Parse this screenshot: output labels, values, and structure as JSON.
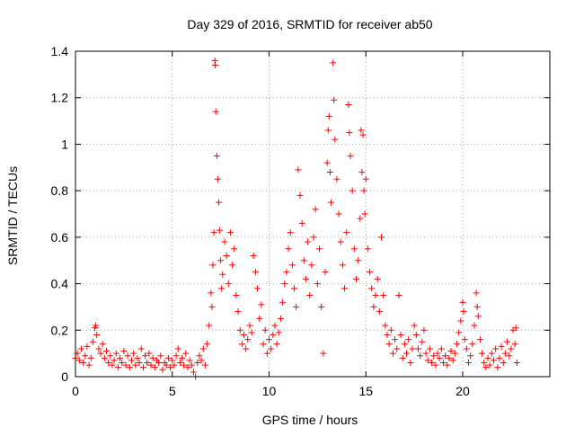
{
  "chart_data": {
    "type": "scatter",
    "title": "Day 329 of 2016, SRMTID for receiver ab50",
    "xlabel": "GPS time / hours",
    "ylabel": "SRMTID / TECUs",
    "xlim": [
      0,
      24.5
    ],
    "ylim": [
      0,
      1.4
    ],
    "x_ticks": [
      0,
      5,
      10,
      15,
      20
    ],
    "x_tick_labels": [
      "0",
      "5",
      "10",
      "15",
      "20"
    ],
    "y_ticks": [
      0,
      0.2,
      0.4,
      0.6,
      0.8,
      1.0,
      1.2,
      1.4
    ],
    "y_tick_labels": [
      "0",
      "0.2",
      "0.4",
      "0.6",
      "0.8",
      "1",
      "1.2",
      "1.4"
    ],
    "grid": true,
    "marker": "+",
    "series": [
      {
        "name": "SRMTID",
        "color": "#ff0000",
        "points": [
          [
            0.0,
            0.08
          ],
          [
            0.1,
            0.1
          ],
          [
            0.2,
            0.07
          ],
          [
            0.3,
            0.12
          ],
          [
            0.4,
            0.06
          ],
          [
            0.5,
            0.09
          ],
          [
            0.6,
            0.13
          ],
          [
            0.7,
            0.05
          ],
          [
            0.8,
            0.08
          ],
          [
            0.9,
            0.15
          ],
          [
            1.0,
            0.21
          ],
          [
            1.05,
            0.22
          ],
          [
            1.1,
            0.18
          ],
          [
            1.2,
            0.12
          ],
          [
            1.3,
            0.1
          ],
          [
            1.4,
            0.14
          ],
          [
            1.5,
            0.08
          ],
          [
            1.6,
            0.11
          ],
          [
            1.7,
            0.06
          ],
          [
            1.8,
            0.09
          ],
          [
            1.9,
            0.05
          ],
          [
            2.0,
            0.07
          ],
          [
            2.1,
            0.1
          ],
          [
            2.2,
            0.04
          ],
          [
            2.3,
            0.08
          ],
          [
            2.4,
            0.06
          ],
          [
            2.5,
            0.11
          ],
          [
            2.6,
            0.05
          ],
          [
            2.7,
            0.09
          ],
          [
            2.8,
            0.04
          ],
          [
            2.9,
            0.07
          ],
          [
            3.0,
            0.1
          ],
          [
            3.1,
            0.05
          ],
          [
            3.2,
            0.08
          ],
          [
            3.3,
            0.06
          ],
          [
            3.4,
            0.12
          ],
          [
            3.5,
            0.04
          ],
          [
            3.6,
            0.09
          ],
          [
            3.7,
            0.06
          ],
          [
            3.8,
            0.1
          ],
          [
            3.9,
            0.05
          ],
          [
            4.0,
            0.08
          ],
          [
            4.1,
            0.04
          ],
          [
            4.2,
            0.07
          ],
          [
            4.3,
            0.06
          ],
          [
            4.4,
            0.09
          ],
          [
            4.5,
            0.03
          ],
          [
            4.6,
            0.06
          ],
          [
            4.7,
            0.05
          ],
          [
            4.8,
            0.08
          ],
          [
            4.9,
            0.04
          ],
          [
            5.0,
            0.07
          ],
          [
            5.1,
            0.05
          ],
          [
            5.2,
            0.09
          ],
          [
            5.3,
            0.12
          ],
          [
            5.4,
            0.06
          ],
          [
            5.5,
            0.08
          ],
          [
            5.6,
            0.05
          ],
          [
            5.7,
            0.1
          ],
          [
            5.8,
            0.04
          ],
          [
            5.9,
            0.07
          ],
          [
            6.0,
            0.05
          ],
          [
            6.1,
            0.02
          ],
          [
            6.2,
            0.0
          ],
          [
            6.3,
            0.06
          ],
          [
            6.4,
            0.09
          ],
          [
            6.5,
            0.07
          ],
          [
            6.6,
            0.12
          ],
          [
            6.7,
            0.05
          ],
          [
            6.8,
            0.14
          ],
          [
            6.9,
            0.22
          ],
          [
            7.0,
            0.36
          ],
          [
            7.05,
            0.3
          ],
          [
            7.1,
            0.48
          ],
          [
            7.15,
            0.62
          ],
          [
            7.2,
            1.36
          ],
          [
            7.22,
            1.34
          ],
          [
            7.25,
            1.14
          ],
          [
            7.3,
            0.95
          ],
          [
            7.35,
            0.85
          ],
          [
            7.4,
            0.75
          ],
          [
            7.45,
            0.63
          ],
          [
            7.5,
            0.5
          ],
          [
            7.55,
            0.38
          ],
          [
            7.6,
            0.44
          ],
          [
            7.7,
            0.58
          ],
          [
            7.8,
            0.52
          ],
          [
            7.9,
            0.4
          ],
          [
            8.0,
            0.62
          ],
          [
            8.1,
            0.48
          ],
          [
            8.2,
            0.55
          ],
          [
            8.3,
            0.35
          ],
          [
            8.4,
            0.28
          ],
          [
            8.5,
            0.2
          ],
          [
            8.6,
            0.14
          ],
          [
            8.7,
            0.18
          ],
          [
            8.8,
            0.12
          ],
          [
            8.9,
            0.16
          ],
          [
            9.0,
            0.22
          ],
          [
            9.1,
            0.19
          ],
          [
            9.2,
            0.52
          ],
          [
            9.3,
            0.45
          ],
          [
            9.4,
            0.38
          ],
          [
            9.5,
            0.25
          ],
          [
            9.6,
            0.31
          ],
          [
            9.7,
            0.14
          ],
          [
            9.8,
            0.2
          ],
          [
            9.9,
            0.1
          ],
          [
            10.0,
            0.16
          ],
          [
            10.1,
            0.12
          ],
          [
            10.2,
            0.18
          ],
          [
            10.3,
            0.22
          ],
          [
            10.4,
            0.14
          ],
          [
            10.5,
            0.19
          ],
          [
            10.6,
            0.25
          ],
          [
            10.7,
            0.32
          ],
          [
            10.8,
            0.4
          ],
          [
            10.9,
            0.45
          ],
          [
            11.0,
            0.55
          ],
          [
            11.1,
            0.62
          ],
          [
            11.2,
            0.48
          ],
          [
            11.3,
            0.38
          ],
          [
            11.4,
            0.3
          ],
          [
            11.5,
            0.89
          ],
          [
            11.6,
            0.78
          ],
          [
            11.7,
            0.66
          ],
          [
            11.8,
            0.5
          ],
          [
            11.9,
            0.42
          ],
          [
            12.0,
            0.58
          ],
          [
            12.1,
            0.35
          ],
          [
            12.2,
            0.48
          ],
          [
            12.3,
            0.6
          ],
          [
            12.4,
            0.72
          ],
          [
            12.5,
            0.4
          ],
          [
            12.6,
            0.55
          ],
          [
            12.7,
            0.3
          ],
          [
            12.8,
            0.1
          ],
          [
            12.9,
            0.45
          ],
          [
            13.0,
            0.92
          ],
          [
            13.05,
            1.06
          ],
          [
            13.1,
            1.12
          ],
          [
            13.15,
            0.88
          ],
          [
            13.2,
            0.75
          ],
          [
            13.3,
            1.35
          ],
          [
            13.35,
            1.19
          ],
          [
            13.4,
            1.02
          ],
          [
            13.5,
            0.85
          ],
          [
            13.6,
            0.7
          ],
          [
            13.7,
            0.58
          ],
          [
            13.8,
            0.48
          ],
          [
            13.9,
            0.38
          ],
          [
            14.0,
            0.62
          ],
          [
            14.1,
            1.17
          ],
          [
            14.15,
            1.05
          ],
          [
            14.2,
            0.95
          ],
          [
            14.3,
            0.8
          ],
          [
            14.4,
            0.55
          ],
          [
            14.5,
            0.42
          ],
          [
            14.6,
            0.5
          ],
          [
            14.7,
            0.68
          ],
          [
            14.75,
            1.06
          ],
          [
            14.8,
            0.88
          ],
          [
            14.85,
            1.04
          ],
          [
            14.9,
            0.8
          ],
          [
            14.95,
            0.7
          ],
          [
            15.0,
            0.85
          ],
          [
            15.1,
            0.55
          ],
          [
            15.2,
            0.45
          ],
          [
            15.3,
            0.38
          ],
          [
            15.4,
            0.3
          ],
          [
            15.5,
            0.35
          ],
          [
            15.6,
            0.42
          ],
          [
            15.7,
            0.28
          ],
          [
            15.8,
            0.6
          ],
          [
            15.9,
            0.35
          ],
          [
            16.0,
            0.22
          ],
          [
            16.1,
            0.18
          ],
          [
            16.2,
            0.14
          ],
          [
            16.3,
            0.2
          ],
          [
            16.4,
            0.1
          ],
          [
            16.5,
            0.16
          ],
          [
            16.6,
            0.12
          ],
          [
            16.7,
            0.35
          ],
          [
            16.8,
            0.18
          ],
          [
            16.9,
            0.08
          ],
          [
            17.0,
            0.14
          ],
          [
            17.1,
            0.1
          ],
          [
            17.2,
            0.16
          ],
          [
            17.3,
            0.06
          ],
          [
            17.4,
            0.12
          ],
          [
            17.5,
            0.22
          ],
          [
            17.6,
            0.18
          ],
          [
            17.7,
            0.12
          ],
          [
            17.8,
            0.09
          ],
          [
            17.9,
            0.15
          ],
          [
            18.0,
            0.2
          ],
          [
            18.1,
            0.1
          ],
          [
            18.2,
            0.07
          ],
          [
            18.3,
            0.12
          ],
          [
            18.4,
            0.06
          ],
          [
            18.5,
            0.09
          ],
          [
            18.6,
            0.05
          ],
          [
            18.7,
            0.1
          ],
          [
            18.8,
            0.08
          ],
          [
            18.9,
            0.12
          ],
          [
            19.0,
            0.06
          ],
          [
            19.1,
            0.09
          ],
          [
            19.2,
            0.05
          ],
          [
            19.3,
            0.08
          ],
          [
            19.4,
            0.11
          ],
          [
            19.5,
            0.07
          ],
          [
            19.6,
            0.1
          ],
          [
            19.7,
            0.14
          ],
          [
            19.8,
            0.19
          ],
          [
            19.9,
            0.24
          ],
          [
            20.0,
            0.32
          ],
          [
            20.05,
            0.28
          ],
          [
            20.1,
            0.16
          ],
          [
            20.2,
            0.12
          ],
          [
            20.3,
            0.06
          ],
          [
            20.4,
            0.09
          ],
          [
            20.5,
            0.14
          ],
          [
            20.6,
            0.22
          ],
          [
            20.7,
            0.36
          ],
          [
            20.75,
            0.3
          ],
          [
            20.8,
            0.26
          ],
          [
            20.9,
            0.16
          ],
          [
            21.0,
            0.1
          ],
          [
            21.1,
            0.06
          ],
          [
            21.2,
            0.04
          ],
          [
            21.3,
            0.08
          ],
          [
            21.4,
            0.05
          ],
          [
            21.5,
            0.1
          ],
          [
            21.6,
            0.07
          ],
          [
            21.7,
            0.12
          ],
          [
            21.8,
            0.04
          ],
          [
            21.9,
            0.08
          ],
          [
            22.0,
            0.13
          ],
          [
            22.1,
            0.06
          ],
          [
            22.2,
            0.1
          ],
          [
            22.3,
            0.15
          ],
          [
            22.4,
            0.09
          ],
          [
            22.5,
            0.12
          ],
          [
            22.6,
            0.2
          ],
          [
            22.7,
            0.14
          ],
          [
            22.75,
            0.21
          ],
          [
            22.8,
            0.06
          ]
        ]
      }
    ]
  }
}
